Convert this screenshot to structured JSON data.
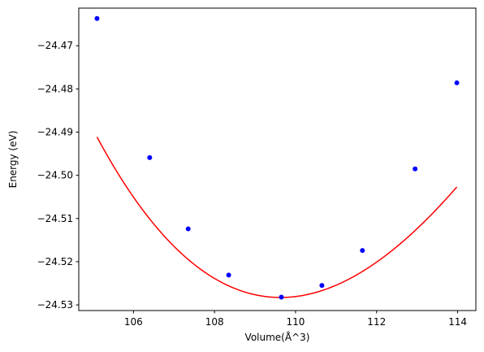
{
  "chart_data": {
    "type": "line",
    "title": "",
    "xlabel": "Volume(Å^3)",
    "ylabel": "Energy (eV)",
    "xlim": [
      104.65,
      114.45
    ],
    "ylim": [
      -24.5313,
      -24.4613
    ],
    "x_ticks": [
      106,
      108,
      110,
      112,
      114
    ],
    "x_tick_labels": [
      "106",
      "108",
      "110",
      "112",
      "114"
    ],
    "y_ticks": [
      -24.47,
      -24.48,
      -24.49,
      -24.5,
      -24.51,
      -24.52,
      -24.53
    ],
    "y_tick_labels": [
      "−24.47",
      "−24.48",
      "−24.49",
      "−24.50",
      "−24.51",
      "−24.52",
      "−24.53"
    ],
    "grid": false,
    "series": [
      {
        "type": "scatter",
        "color": "#0000ff",
        "x": [
          105.1,
          106.4,
          107.35,
          108.35,
          109.65,
          110.65,
          111.65,
          112.95,
          113.98
        ],
        "y": [
          -24.4637,
          -24.4959,
          -24.5124,
          -24.5231,
          -24.5282,
          -24.5255,
          -24.5174,
          -24.4985,
          -24.4786
        ]
      },
      {
        "type": "line",
        "color": "#ff0000",
        "fit": "cubic",
        "x_range": [
          105.1,
          113.98
        ],
        "coefficients": [
          -24.528266,
          0.000225,
          0.0015655,
          -5.183e-05
        ],
        "x_center": 109.7
      }
    ]
  }
}
